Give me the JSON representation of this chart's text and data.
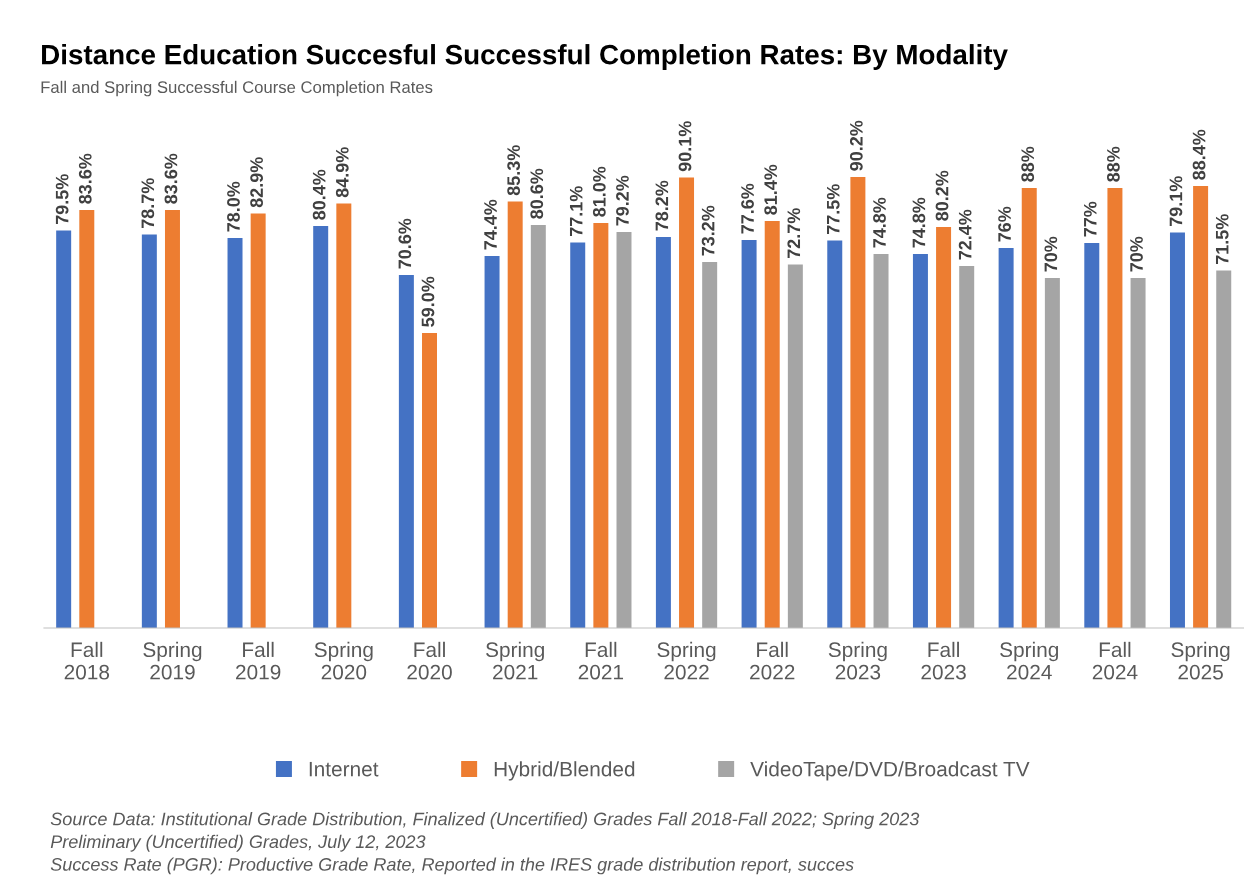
{
  "chart_data": {
    "type": "bar",
    "title": "Distance Education Succesful Successful Completion Rates: By Modality",
    "subtitle": "Fall and Spring Successful Course Completion Rates",
    "categories": [
      "Fall\n2018",
      "Spring\n2019",
      "Fall\n2019",
      "Spring\n2020",
      "Fall\n2020",
      "Spring\n2021",
      "Fall\n2021",
      "Spring\n2022",
      "Fall\n2022",
      "Spring\n2023",
      "Fall\n2023",
      "Spring\n2024",
      "Fall\n2024",
      "Spring\n2025"
    ],
    "series": [
      {
        "name": "Internet",
        "color": "#4472c4",
        "values": [
          79.5,
          78.7,
          78.0,
          80.4,
          70.6,
          74.4,
          77.1,
          78.2,
          77.6,
          77.5,
          74.8,
          76,
          77,
          79.1
        ],
        "value_labels": [
          "79.5%",
          "78.7%",
          "78.0%",
          "80.4%",
          "70.6%",
          "74.4%",
          "77.1%",
          "78.2%",
          "77.6%",
          "77.5%",
          "74.8%",
          "76%",
          "77%",
          "79.1%"
        ]
      },
      {
        "name": "Hybrid/Blended",
        "color": "#ed7d31",
        "values": [
          83.6,
          83.6,
          82.9,
          84.9,
          59.0,
          85.3,
          81.0,
          90.1,
          81.4,
          90.2,
          80.2,
          88,
          88,
          88.4
        ],
        "value_labels": [
          "83.6%",
          "83.6%",
          "82.9%",
          "84.9%",
          "59.0%",
          "85.3%",
          "81.0%",
          "90.1%",
          "81.4%",
          "90.2%",
          "80.2%",
          "88%",
          "88%",
          "88.4%"
        ]
      },
      {
        "name": "VideoTape/DVD/Broadcast TV",
        "color": "#a5a5a5",
        "values": [
          null,
          null,
          null,
          null,
          null,
          80.6,
          79.2,
          73.2,
          72.7,
          74.8,
          72.4,
          70,
          70,
          71.5
        ],
        "value_labels": [
          null,
          null,
          null,
          null,
          null,
          "80.6%",
          "79.2%",
          "73.2%",
          "72.7%",
          "74.8%",
          "72.4%",
          "70%",
          "70%",
          "71.5%"
        ]
      }
    ],
    "tick_labels": "x",
    "grid": false,
    "legend": "bottom",
    "annotations": [
      "Source Data: Institutional Grade Distribution, Finalized (Uncertified) Grades Fall 2018-Fall 2022; Spring 2023\nPreliminary (Uncertified) Grades, July 12, 2023\nSuccess Rate (PGR): Productive Grade Rate, Reported in the IRES grade distribution report, succes"
    ]
  }
}
